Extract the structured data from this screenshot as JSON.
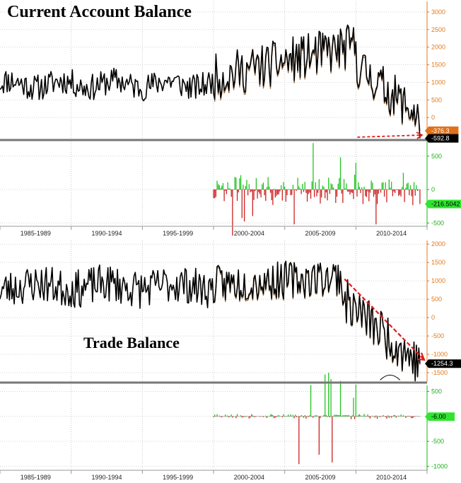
{
  "chart_data": [
    {
      "type": "line",
      "title": "Current Account Balance",
      "ylim": [
        -600,
        3300
      ],
      "yticks": [
        0,
        500,
        1000,
        1500,
        2000,
        2500,
        3000
      ],
      "tick_labels": [
        "0",
        "500",
        "1000",
        "1500",
        "2000",
        "2500",
        "3000"
      ],
      "tick_color": "#e07a1f",
      "series": [
        {
          "color": "#000000",
          "start": 1985.0,
          "end": 2014.5,
          "last_value": -592.8,
          "last_label": "-592.8"
        },
        {
          "color": "#9b6a3c",
          "start": 2000.0,
          "end": 2014.5,
          "last_value": -376.3,
          "last_label": "-376.3"
        }
      ],
      "last_value_color": "#e0701a",
      "annotation": "dashed red arrow at right pointing to latest value"
    },
    {
      "type": "bar",
      "ylim": [
        -550,
        720
      ],
      "yticks": [
        500,
        0,
        -500
      ],
      "tick_labels": [
        "500",
        "0",
        "-500"
      ],
      "tick_color": "#19b419",
      "start": 2000.0,
      "end": 2014.5,
      "last_value": -216.5042,
      "last_label": "-216.5042",
      "pos_color": "#22c322",
      "neg_color": "#cc2222"
    },
    {
      "type": "line",
      "title": "Trade Balance",
      "ylim": [
        -1750,
        2100
      ],
      "yticks": [
        2000,
        1500,
        1000,
        500,
        0,
        -500,
        -1000,
        -1500
      ],
      "tick_labels": [
        "2000",
        "1500",
        "1000",
        "500",
        "0",
        "-500",
        "-1000",
        "-1500"
      ],
      "tick_color": "#e07a1f",
      "series": [
        {
          "color": "#000000",
          "start": 1985.0,
          "end": 2014.5,
          "last_value": -1254.3,
          "last_label": "-1254.3"
        },
        {
          "color": "#9b6a3c",
          "start": 2000.0,
          "end": 2014.5
        }
      ],
      "annotation": "red downward trend arrow from 2009 to 2014"
    },
    {
      "type": "bar",
      "ylim": [
        -1080,
        620
      ],
      "yticks": [
        500,
        0,
        -500,
        -1000
      ],
      "tick_labels": [
        "500",
        "0",
        "-500",
        "-1000"
      ],
      "tick_color": "#19b419",
      "start": 2000.0,
      "end": 2014.5,
      "last_value": -6.0,
      "last_label": "-6.00",
      "pos_color": "#22c322",
      "neg_color": "#cc2222"
    }
  ],
  "eras": [
    "1985-1989",
    "1990-1994",
    "1995-1999",
    "2000-2004",
    "2005-2009",
    "2010-2014"
  ],
  "x_start": 1985,
  "x_end": 2015,
  "titles": {
    "current_account": "Current Account Balance",
    "trade": "Trade Balance"
  }
}
